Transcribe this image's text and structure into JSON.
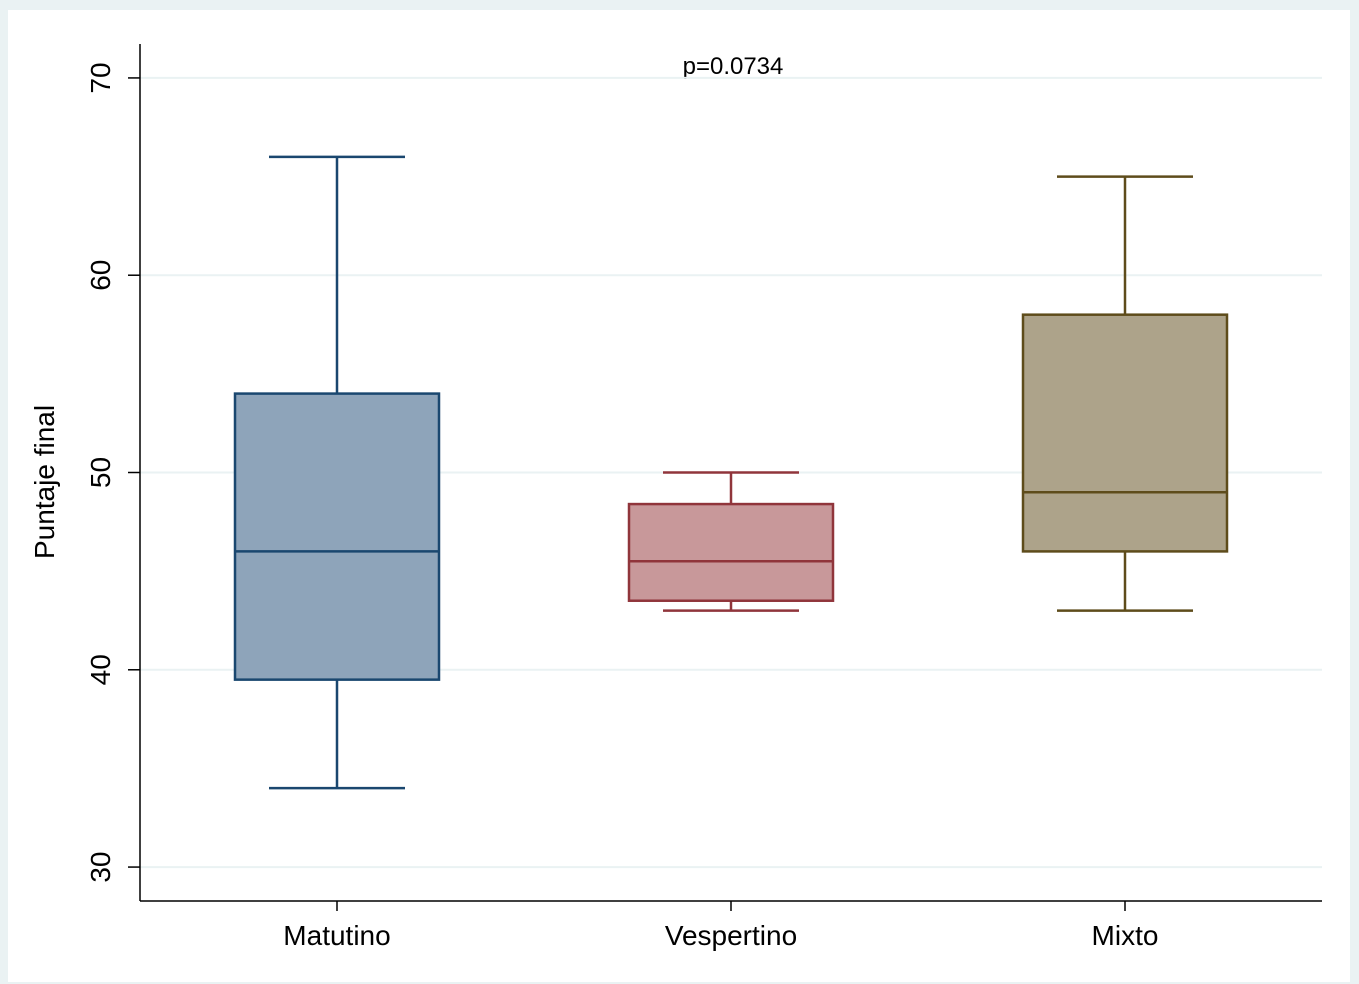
{
  "chart_data": {
    "type": "box",
    "annotation": "p=0.0734",
    "y_label": "Puntaje final",
    "categories": [
      "Matutino",
      "Vespertino",
      "Mixto"
    ],
    "boxes": [
      {
        "min": 34,
        "q1": 39.5,
        "median": 46,
        "q3": 54,
        "max": 66,
        "color": "#1a476f",
        "fill": "#8ea4ba"
      },
      {
        "min": 43,
        "q1": 43.5,
        "median": 45.5,
        "q3": 48.4,
        "max": 50,
        "color": "#90353b",
        "fill": "#c8989a"
      },
      {
        "min": 43,
        "q1": 46,
        "median": 49,
        "q3": 58,
        "max": 65,
        "color": "#5e4c1b",
        "fill": "#ada38a"
      }
    ],
    "ylim": [
      28.28,
      71.72
    ],
    "yticks": [
      30,
      40,
      50,
      60,
      70
    ],
    "grid": true
  }
}
